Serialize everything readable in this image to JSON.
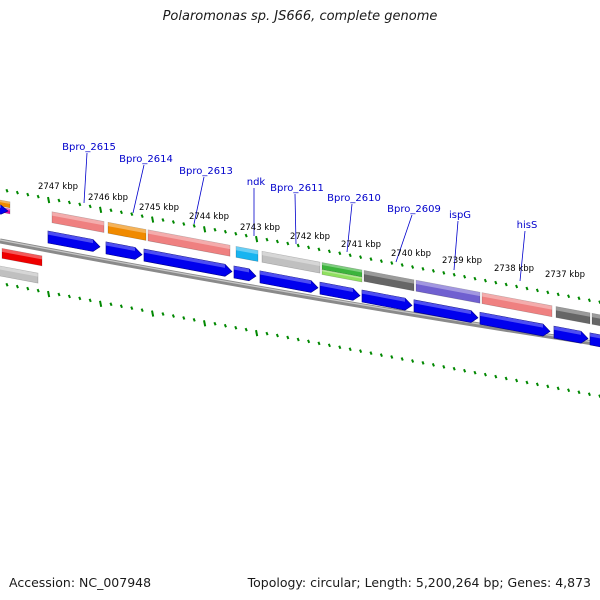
{
  "title": "Polaromonas sp. JS666, complete genome",
  "accession": "Accession: NC_007948",
  "topology": "Topology: circular; Length: 5,200,264 bp; Genes: 4,873",
  "colors": {
    "cds": "#0000ee",
    "pink": "#ef8080",
    "orange": "#f08a00",
    "cyan": "#18b4f0",
    "silver": "#c0c0c0",
    "green": "#3cb43c",
    "lime": "#90e060",
    "darkgray": "#666666",
    "purple": "#7060d0",
    "red": "#ee0000",
    "magenta": "#e010a0",
    "tick": "#008800",
    "label": "#0000cc"
  },
  "gene_labels": [
    "Bpro_2615",
    "Bpro_2614",
    "Bpro_2613",
    "ndk",
    "Bpro_2611",
    "Bpro_2610",
    "Bpro_2609",
    "ispG",
    "hisS"
  ],
  "tick_labels": [
    "2747 kbp",
    "2746 kbp",
    "2745 kbp",
    "2744 kbp",
    "2743 kbp",
    "2742 kbp",
    "2741 kbp",
    "2740 kbp",
    "2739 kbp",
    "2738 kbp",
    "2737 kbp"
  ]
}
